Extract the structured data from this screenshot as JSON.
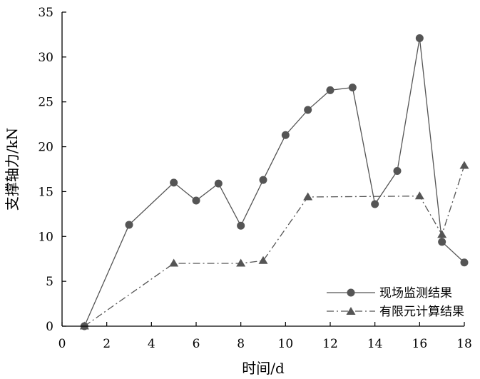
{
  "chart_data": {
    "type": "line",
    "xlabel": "时间/d",
    "ylabel": "支撑轴力/kN",
    "xlim": [
      0,
      18
    ],
    "ylim": [
      0,
      35
    ],
    "xticks": [
      "0",
      "2",
      "4",
      "6",
      "8",
      "10",
      "12",
      "14",
      "16",
      "18"
    ],
    "yticks": [
      "0",
      "5",
      "10",
      "15",
      "20",
      "25",
      "30",
      "35"
    ],
    "grid": false,
    "legend_position": "bottom-right",
    "series": [
      {
        "name": "现场监测结果",
        "marker": "circle",
        "line_style": "solid",
        "color": "#555555",
        "points": [
          [
            1,
            0
          ],
          [
            3,
            11.3
          ],
          [
            5,
            16
          ],
          [
            6,
            14
          ],
          [
            7,
            15.9
          ],
          [
            8,
            11.2
          ],
          [
            9,
            16.3
          ],
          [
            10,
            21.3
          ],
          [
            11,
            24.1
          ],
          [
            12,
            26.3
          ],
          [
            13,
            26.6
          ],
          [
            14,
            13.6
          ],
          [
            15,
            17.3
          ],
          [
            16,
            32.1
          ],
          [
            17,
            9.4
          ],
          [
            18,
            7.1
          ]
        ]
      },
      {
        "name": "有限元计算结果",
        "marker": "triangle",
        "line_style": "dash-dot",
        "color": "#555555",
        "points": [
          [
            1,
            0
          ],
          [
            5,
            7
          ],
          [
            8,
            7
          ],
          [
            9,
            7.3
          ],
          [
            11,
            14.4
          ],
          [
            16,
            14.5
          ],
          [
            17,
            10.2
          ],
          [
            18,
            17.9
          ]
        ]
      }
    ]
  }
}
